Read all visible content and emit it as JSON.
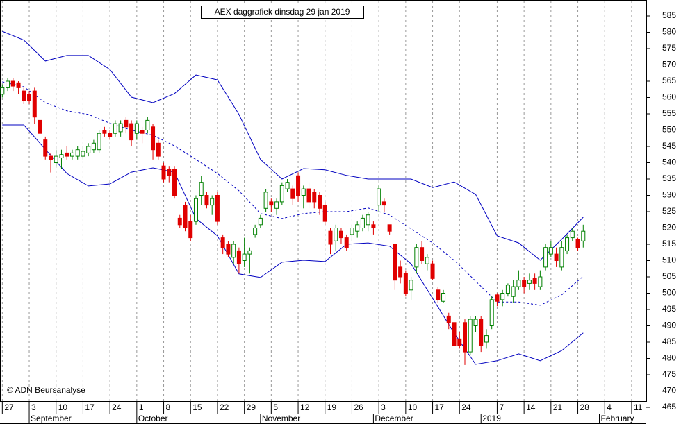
{
  "chart_data": {
    "type": "candlestick",
    "title": "AEX daggrafiek dinsdag 29 jan 2019",
    "annotation": "© ADN Beursanalyse",
    "xlim": [
      -0.43,
      119.72
    ],
    "ylim": [
      465,
      590
    ],
    "yticks": [
      465,
      470,
      475,
      480,
      485,
      490,
      495,
      500,
      505,
      510,
      515,
      520,
      525,
      530,
      535,
      540,
      545,
      550,
      555,
      560,
      565,
      570,
      575,
      580,
      585
    ],
    "xticks": [
      {
        "value": 0,
        "label": "27"
      },
      {
        "value": 5,
        "label": "3"
      },
      {
        "value": 10,
        "label": "10"
      },
      {
        "value": 15,
        "label": "17"
      },
      {
        "value": 20,
        "label": "24"
      },
      {
        "value": 25,
        "label": "1"
      },
      {
        "value": 30,
        "label": "8"
      },
      {
        "value": 35,
        "label": "15"
      },
      {
        "value": 40,
        "label": "22"
      },
      {
        "value": 45,
        "label": "29"
      },
      {
        "value": 50,
        "label": "5"
      },
      {
        "value": 55,
        "label": "12"
      },
      {
        "value": 60,
        "label": "19"
      },
      {
        "value": 65,
        "label": "26"
      },
      {
        "value": 70,
        "label": "3"
      },
      {
        "value": 75,
        "label": "10"
      },
      {
        "value": 80,
        "label": "17"
      },
      {
        "value": 85,
        "label": "24"
      },
      {
        "value": 92,
        "label": "7"
      },
      {
        "value": 97,
        "label": "14"
      },
      {
        "value": 102,
        "label": "21"
      },
      {
        "value": 107,
        "label": "28"
      },
      {
        "value": 112,
        "label": "4"
      },
      {
        "value": 117,
        "label": "11"
      }
    ],
    "month_ticks": [
      {
        "value": 5,
        "label": "September"
      },
      {
        "value": 25,
        "label": "October"
      },
      {
        "value": 48,
        "label": "November"
      },
      {
        "value": 69,
        "label": "December"
      },
      {
        "value": 89,
        "label": "2019"
      },
      {
        "value": 111,
        "label": "February"
      }
    ],
    "up_color": "#008000",
    "down_color": "#e00000",
    "candles": {
      "x": [
        0,
        1,
        2,
        3,
        4,
        5,
        6,
        7,
        8,
        9,
        10,
        11,
        12,
        13,
        14,
        15,
        16,
        17,
        18,
        19,
        20,
        21,
        22,
        23,
        24,
        25,
        26,
        27,
        28,
        29,
        30,
        31,
        32,
        33,
        34,
        35,
        36,
        37,
        38,
        39,
        40,
        41,
        42,
        43,
        44,
        45,
        46,
        47,
        48,
        49,
        50,
        51,
        52,
        53,
        54,
        55,
        56,
        57,
        58,
        59,
        60,
        61,
        62,
        63,
        64,
        65,
        66,
        67,
        68,
        69,
        70,
        71,
        72,
        73,
        74,
        75,
        76,
        77,
        78,
        79,
        80,
        81,
        82,
        83,
        84,
        85,
        86,
        87,
        88,
        89,
        90,
        91,
        92,
        93,
        94,
        95,
        96,
        97,
        98,
        99,
        100,
        101,
        102,
        103,
        104,
        105,
        106,
        107,
        108
      ],
      "open": [
        561,
        563,
        565,
        564.5,
        562,
        561,
        562,
        553,
        547,
        542,
        540,
        541.5,
        543,
        542,
        542,
        542,
        543,
        544,
        544,
        550,
        549,
        549,
        549.5,
        553,
        552,
        549,
        550,
        550,
        551,
        546,
        539,
        538,
        538,
        523,
        527,
        522,
        522,
        530,
        530,
        527,
        530,
        517,
        515,
        511,
        513,
        510,
        512,
        518,
        521,
        526,
        528,
        526,
        528,
        532,
        532,
        536,
        530,
        532,
        531,
        530,
        527,
        519,
        516,
        519,
        517,
        518,
        519,
        520,
        521,
        521,
        527,
        528,
        521,
        515,
        508,
        506,
        501,
        508,
        514,
        509,
        509,
        501,
        497.5,
        493,
        491,
        486,
        491,
        482,
        490,
        492,
        485,
        490,
        499.5,
        498,
        500,
        499,
        502,
        504,
        503,
        504.5,
        502,
        508,
        512,
        512,
        508,
        513,
        517,
        516.5,
        516
      ],
      "high": [
        564,
        566,
        566,
        565,
        563,
        562,
        563,
        555,
        548,
        543,
        544,
        544,
        545,
        544,
        545,
        545,
        546,
        547,
        550,
        551,
        550,
        553,
        553,
        554,
        553,
        553,
        551,
        554,
        552,
        547,
        540,
        539,
        539,
        524,
        528,
        524,
        530,
        536,
        531,
        530,
        531,
        518,
        516,
        516,
        514,
        517,
        514,
        521,
        524,
        532,
        529,
        529,
        534,
        535,
        533,
        537,
        533,
        534,
        532,
        531,
        528,
        520,
        521,
        520,
        518,
        521,
        522,
        524,
        525,
        522,
        533,
        529,
        521,
        515,
        510,
        507,
        505,
        515,
        516,
        512,
        510,
        502,
        501,
        494,
        492,
        488,
        492,
        493,
        493,
        493,
        489,
        499,
        500,
        501,
        503,
        504,
        507,
        505,
        506,
        506,
        507,
        515,
        516,
        514,
        516,
        518,
        520,
        517,
        521
      ],
      "low": [
        560,
        562,
        562,
        561,
        558,
        558,
        552,
        548,
        541,
        537,
        539,
        538,
        541,
        541,
        541,
        541,
        542,
        543,
        543,
        548,
        547,
        548,
        548,
        549,
        545,
        547,
        546,
        549,
        541,
        541,
        534,
        534,
        529,
        520,
        519,
        516,
        521,
        527,
        526,
        524,
        521,
        512,
        511,
        509,
        506,
        508,
        506,
        517,
        520,
        525,
        525,
        524,
        527,
        531,
        527,
        528,
        526,
        526,
        526,
        524,
        521,
        512,
        513,
        515,
        513,
        516,
        517,
        519,
        519,
        518,
        525,
        525,
        518,
        501,
        503,
        499,
        498,
        506,
        509,
        507,
        504,
        497,
        497,
        489,
        482,
        483,
        478,
        481,
        488,
        482,
        483,
        489,
        496,
        496,
        499,
        497,
        501,
        500,
        501,
        501,
        501,
        507,
        511,
        508,
        507,
        512,
        516,
        513,
        514
      ],
      "close": [
        563,
        565,
        563.5,
        563,
        559,
        559,
        554,
        549,
        542,
        541,
        542,
        542.5,
        542,
        543,
        544,
        543.5,
        545,
        546,
        549,
        549,
        548,
        552,
        552,
        551,
        547,
        552,
        549,
        553,
        544,
        542,
        535,
        536,
        530,
        521,
        520,
        517,
        529,
        534,
        527,
        529,
        522,
        514,
        512,
        515,
        509,
        512,
        513,
        520,
        523,
        531,
        527,
        528,
        533,
        534,
        529,
        530,
        532,
        528,
        528,
        526,
        522,
        515,
        520,
        517,
        514,
        520,
        521,
        523,
        524,
        520,
        532,
        527,
        519,
        504,
        505,
        500,
        504,
        514,
        510,
        511,
        504.5,
        498,
        500,
        491,
        484,
        484,
        482,
        492,
        492,
        484,
        487,
        498,
        497.5,
        500,
        502.5,
        502,
        504,
        502,
        504,
        503,
        505,
        514,
        514,
        510,
        514,
        517,
        519,
        514,
        519
      ]
    },
    "series": [
      {
        "color": "#0000c0",
        "dash": false,
        "x": [
          0,
          4,
          8,
          12,
          16,
          20,
          24,
          28,
          32,
          36,
          40,
          44,
          48,
          52,
          56,
          60,
          64,
          68,
          72,
          76,
          80,
          84,
          88,
          92,
          96,
          100,
          104,
          108
        ],
        "values": [
          580.3,
          577.6,
          571.2,
          572.9,
          572.9,
          568.6,
          560.1,
          558.4,
          561.2,
          566.9,
          565.4,
          554.8,
          541,
          535,
          538.2,
          537.8,
          536.1,
          535,
          535,
          535,
          532.4,
          534.1,
          530.3,
          517.6,
          515.4,
          510.1,
          516.5,
          523.3
        ]
      },
      {
        "color": "#0000c0",
        "dash": true,
        "x": [
          0,
          4,
          8,
          12,
          16,
          20,
          24,
          28,
          32,
          36,
          40,
          44,
          48,
          52,
          56,
          60,
          64,
          68,
          72,
          76,
          80,
          84,
          88,
          92,
          96,
          100,
          104,
          108
        ],
        "values": [
          564.8,
          563.3,
          558.4,
          555.9,
          554.8,
          552.1,
          550,
          548.4,
          545.2,
          541,
          536.7,
          531.4,
          524.4,
          522.9,
          524.4,
          525,
          525,
          526.1,
          524,
          519.7,
          515.4,
          510.1,
          503.7,
          497.3,
          497.3,
          496.3,
          499.5,
          505.2
        ]
      },
      {
        "color": "#0000c0",
        "dash": false,
        "x": [
          0,
          4,
          8,
          12,
          16,
          20,
          24,
          28,
          32,
          36,
          40,
          44,
          48,
          52,
          56,
          60,
          64,
          68,
          72,
          76,
          80,
          84,
          88,
          92,
          96,
          100,
          104,
          108
        ],
        "values": [
          551.6,
          551.6,
          544.1,
          536.7,
          532.9,
          533.5,
          537.1,
          538.4,
          537.1,
          522.9,
          517.6,
          505.9,
          504.8,
          509.5,
          510.1,
          509.7,
          515,
          515.4,
          514.4,
          509,
          498.4,
          487.8,
          478.2,
          479.3,
          481.4,
          479.3,
          482.4,
          487.8
        ]
      }
    ]
  }
}
